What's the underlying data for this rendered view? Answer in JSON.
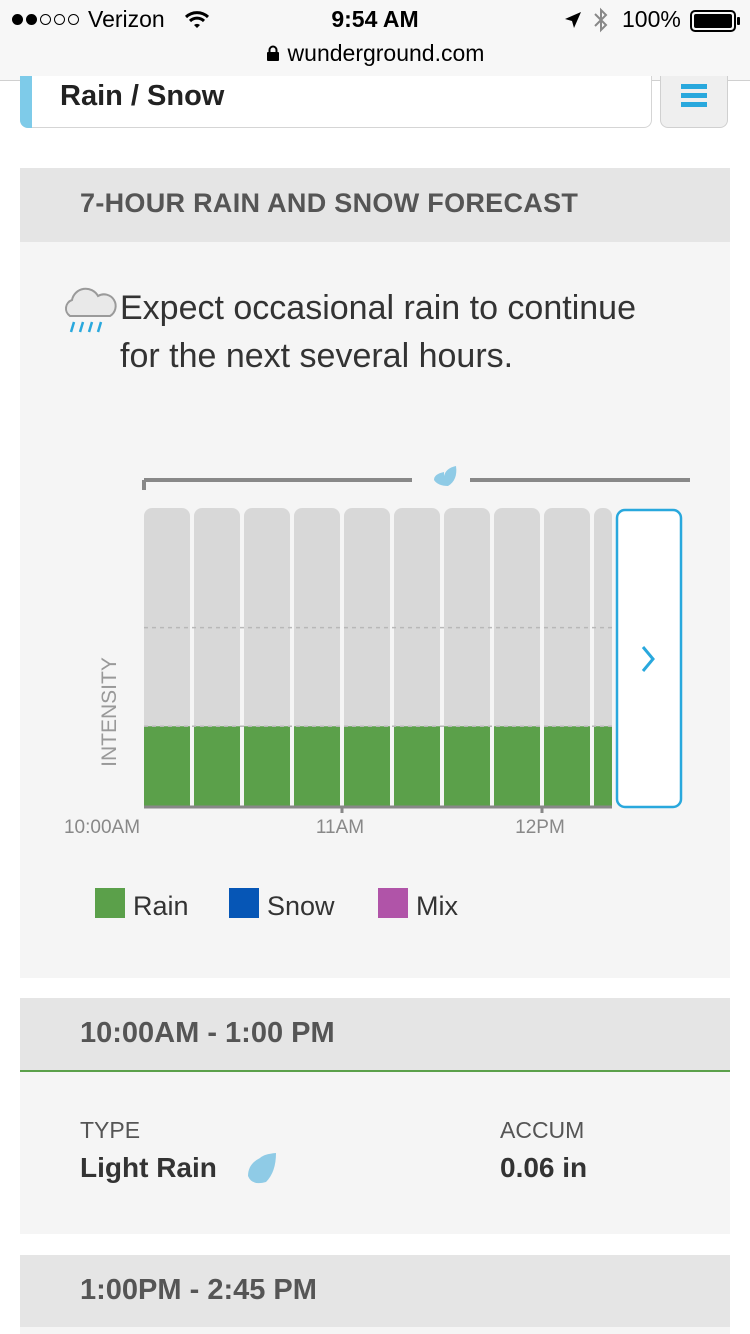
{
  "status_bar": {
    "carrier": "Verizon",
    "time": "9:54 AM",
    "battery": "100%",
    "url": "wunderground.com"
  },
  "selector": {
    "label": "Rain / Snow"
  },
  "forecast": {
    "title": "7-HOUR RAIN AND SNOW FORECAST",
    "summary": "Expect occasional rain to continue for the next several hours."
  },
  "chart_data": {
    "type": "bar",
    "title": "",
    "ylabel": "INTENSITY",
    "x_ticks": [
      "10:00AM",
      "11AM",
      "12PM"
    ],
    "bar_count": 10,
    "series": [
      {
        "name": "Rain",
        "color": "#5ba04a",
        "values": [
          0.27,
          0.27,
          0.27,
          0.27,
          0.27,
          0.27,
          0.27,
          0.27,
          0.27,
          0.27
        ]
      }
    ],
    "ylim": [
      0,
      1
    ],
    "reference_lines": [
      0.27,
      0.6
    ],
    "legend": [
      {
        "label": "Rain",
        "color": "#5ba04a"
      },
      {
        "label": "Snow",
        "color": "#0656b6"
      },
      {
        "label": "Mix",
        "color": "#b054a8"
      }
    ],
    "legend_position": "bottom"
  },
  "periods": [
    {
      "range": "10:00AM - 1:00 PM",
      "type_label": "TYPE",
      "type_value": "Light Rain",
      "accum_label": "ACCUM",
      "accum_value": "0.06 in"
    },
    {
      "range": "1:00PM - 2:45 PM"
    }
  ],
  "colors": {
    "accent": "#29a8dd",
    "rain": "#5ba04a",
    "drop": "#8fcbe6"
  }
}
